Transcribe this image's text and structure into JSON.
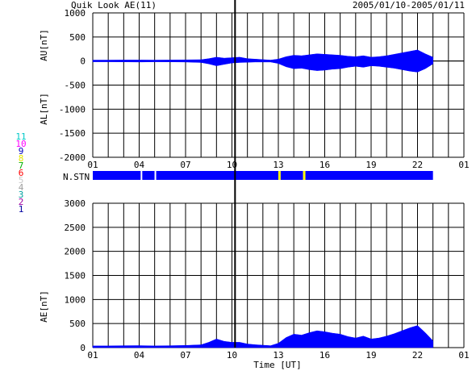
{
  "header": {
    "title": "Quik Look AE(11)",
    "date_range": "2005/01/10-2005/01/11"
  },
  "colors": {
    "fill": "#0000ff",
    "station_gap": "#ffff00",
    "grid": "#000000"
  },
  "stations_legend": [
    {
      "label": "11",
      "color": "#00c8c8"
    },
    {
      "label": "10",
      "color": "#ff00ff"
    },
    {
      "label": "9",
      "color": "#0000c0"
    },
    {
      "label": "8",
      "color": "#e8e800"
    },
    {
      "label": "7",
      "color": "#00b000"
    },
    {
      "label": "6",
      "color": "#ff0000"
    },
    {
      "label": "5",
      "color": "#c8c8c8"
    },
    {
      "label": "4",
      "color": "#a0a0a0"
    },
    {
      "label": "3",
      "color": "#00a0a0"
    },
    {
      "label": "2",
      "color": "#a000a0"
    },
    {
      "label": "1",
      "color": "#0000a0"
    }
  ],
  "chart_data": [
    {
      "type": "area",
      "panel": "AU/AL",
      "ylabel_upper": "AU[nT]",
      "ylabel_lower": "AL[nT]",
      "ylim": [
        -2000,
        1000
      ],
      "yticks": [
        1000,
        500,
        0,
        -500,
        -1000,
        -1500,
        -2000
      ],
      "xlim": [
        0,
        24
      ],
      "xtick_labels": [
        "01",
        "04",
        "07",
        "10",
        "13",
        "16",
        "19",
        "22",
        "01"
      ],
      "xtick_positions": [
        0,
        3,
        6,
        9,
        12,
        15,
        18,
        21,
        24
      ],
      "grid": true,
      "marker_hour": 9.2,
      "data_end_hour": 22.0,
      "series": [
        {
          "name": "AU",
          "x": [
            0,
            1,
            2,
            3,
            4,
            5,
            6,
            7,
            7.5,
            8,
            8.5,
            9,
            9.5,
            10,
            10.5,
            11,
            11.5,
            12,
            12.5,
            13,
            13.5,
            14,
            14.5,
            15,
            15.5,
            16,
            16.5,
            17,
            17.5,
            18,
            18.5,
            19,
            19.5,
            20,
            20.5,
            21,
            21.5,
            22
          ],
          "values": [
            20,
            20,
            22,
            22,
            20,
            22,
            25,
            28,
            50,
            80,
            60,
            70,
            80,
            50,
            40,
            30,
            20,
            40,
            90,
            120,
            110,
            130,
            150,
            140,
            130,
            120,
            100,
            90,
            110,
            80,
            90,
            110,
            140,
            170,
            200,
            230,
            150,
            80
          ]
        },
        {
          "name": "AL",
          "x": [
            0,
            1,
            2,
            3,
            4,
            5,
            6,
            7,
            7.5,
            8,
            8.5,
            9,
            9.5,
            10,
            10.5,
            11,
            11.5,
            12,
            12.5,
            13,
            13.5,
            14,
            14.5,
            15,
            15.5,
            16,
            16.5,
            17,
            17.5,
            18,
            18.5,
            19,
            19.5,
            20,
            20.5,
            21,
            21.5,
            22
          ],
          "values": [
            -15,
            -15,
            -18,
            -20,
            -15,
            -18,
            -20,
            -30,
            -60,
            -100,
            -70,
            -40,
            -30,
            -25,
            -20,
            -20,
            -20,
            -50,
            -120,
            -160,
            -150,
            -180,
            -200,
            -190,
            -170,
            -160,
            -130,
            -110,
            -130,
            -100,
            -110,
            -130,
            -150,
            -180,
            -210,
            -230,
            -160,
            -60
          ]
        }
      ]
    },
    {
      "type": "bar",
      "panel": "N.STN",
      "label": "N.STN",
      "segments": [
        {
          "start": 0,
          "end": 3.1,
          "color": "#0000ff"
        },
        {
          "start": 3.1,
          "end": 3.2,
          "color": "#ffffff"
        },
        {
          "start": 3.2,
          "end": 4.0,
          "color": "#0000ff"
        },
        {
          "start": 4.0,
          "end": 4.1,
          "color": "#ffffff"
        },
        {
          "start": 4.1,
          "end": 12.0,
          "color": "#0000ff"
        },
        {
          "start": 12.0,
          "end": 12.15,
          "color": "#ffff00"
        },
        {
          "start": 12.15,
          "end": 13.6,
          "color": "#0000ff"
        },
        {
          "start": 13.6,
          "end": 13.75,
          "color": "#ffff00"
        },
        {
          "start": 13.75,
          "end": 22.0,
          "color": "#0000ff"
        }
      ]
    },
    {
      "type": "area",
      "panel": "AE",
      "ylabel": "AE[nT]",
      "xlabel": "Time [UT]",
      "ylim": [
        0,
        3000
      ],
      "yticks": [
        3000,
        2500,
        2000,
        1500,
        1000,
        500,
        0
      ],
      "xlim": [
        0,
        24
      ],
      "xtick_labels": [
        "01",
        "04",
        "07",
        "10",
        "13",
        "16",
        "19",
        "22",
        "01"
      ],
      "xtick_positions": [
        0,
        3,
        6,
        9,
        12,
        15,
        18,
        21,
        24
      ],
      "grid": true,
      "marker_hour": 9.2,
      "series": [
        {
          "name": "AE",
          "x": [
            0,
            1,
            2,
            3,
            4,
            5,
            6,
            7,
            7.5,
            8,
            8.5,
            9,
            9.5,
            10,
            10.5,
            11,
            11.5,
            12,
            12.5,
            13,
            13.5,
            14,
            14.5,
            15,
            15.5,
            16,
            16.5,
            17,
            17.5,
            18,
            18.5,
            19,
            19.5,
            20,
            20.5,
            21,
            21.5,
            22
          ],
          "values": [
            35,
            35,
            40,
            42,
            35,
            40,
            45,
            58,
            110,
            180,
            130,
            110,
            110,
            75,
            60,
            50,
            40,
            90,
            210,
            280,
            260,
            310,
            350,
            330,
            300,
            280,
            230,
            200,
            240,
            180,
            200,
            240,
            290,
            350,
            410,
            460,
            310,
            140
          ]
        }
      ]
    }
  ]
}
